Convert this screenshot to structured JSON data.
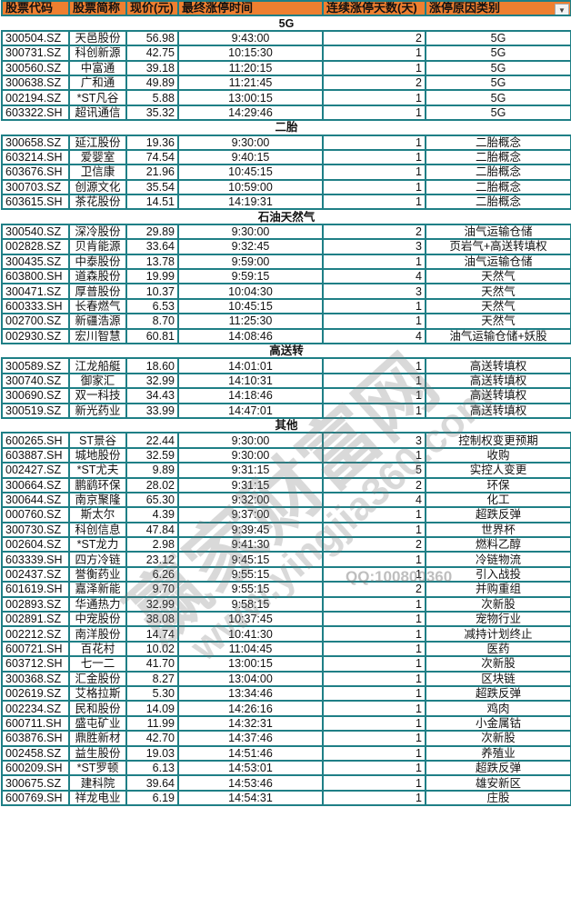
{
  "header": {
    "columns": [
      "股票代码",
      "股票简称",
      "现价(元)",
      "最终涨停时间",
      "连续涨停天数(天)",
      "涨停原因类别"
    ],
    "filter_icon": "dropdown-arrow-icon"
  },
  "colors": {
    "header_bg": "#ee7f30",
    "border": "#1f7f86"
  },
  "sections": [
    {
      "title": "5G",
      "rows": [
        [
          "300504.SZ",
          "天邑股份",
          "56.98",
          "9:43:00",
          "2",
          "5G"
        ],
        [
          "300731.SZ",
          "科创新源",
          "42.75",
          "10:15:30",
          "1",
          "5G"
        ],
        [
          "300560.SZ",
          "中富通",
          "39.18",
          "11:20:15",
          "1",
          "5G"
        ],
        [
          "300638.SZ",
          "广和通",
          "49.89",
          "11:21:45",
          "2",
          "5G"
        ],
        [
          "002194.SZ",
          "*ST凡谷",
          "5.88",
          "13:00:15",
          "1",
          "5G"
        ],
        [
          "603322.SH",
          "超讯通信",
          "35.32",
          "14:29:46",
          "1",
          "5G"
        ]
      ]
    },
    {
      "title": "二胎",
      "rows": [
        [
          "300658.SZ",
          "延江股份",
          "19.36",
          "9:30:00",
          "1",
          "二胎概念"
        ],
        [
          "603214.SH",
          "爱婴室",
          "74.54",
          "9:40:15",
          "1",
          "二胎概念"
        ],
        [
          "603676.SH",
          "卫信康",
          "21.96",
          "10:45:15",
          "1",
          "二胎概念"
        ],
        [
          "300703.SZ",
          "创源文化",
          "35.54",
          "10:59:00",
          "1",
          "二胎概念"
        ],
        [
          "603615.SH",
          "茶花股份",
          "14.51",
          "14:19:31",
          "1",
          "二胎概念"
        ]
      ]
    },
    {
      "title": "石油天然气",
      "rows": [
        [
          "300540.SZ",
          "深冷股份",
          "29.89",
          "9:30:00",
          "2",
          "油气运输仓储"
        ],
        [
          "002828.SZ",
          "贝肯能源",
          "33.64",
          "9:32:45",
          "3",
          "页岩气+高送转填权"
        ],
        [
          "300435.SZ",
          "中泰股份",
          "13.78",
          "9:59:00",
          "1",
          "油气运输仓储"
        ],
        [
          "603800.SH",
          "道森股份",
          "19.99",
          "9:59:15",
          "4",
          "天然气"
        ],
        [
          "300471.SZ",
          "厚普股份",
          "10.37",
          "10:04:30",
          "3",
          "天然气"
        ],
        [
          "600333.SH",
          "长春燃气",
          "6.53",
          "10:45:15",
          "1",
          "天然气"
        ],
        [
          "002700.SZ",
          "新疆浩源",
          "8.70",
          "11:25:30",
          "1",
          "天然气"
        ],
        [
          "002930.SZ",
          "宏川智慧",
          "60.81",
          "14:08:46",
          "4",
          "油气运输仓储+妖股"
        ]
      ]
    },
    {
      "title": "高送转",
      "rows": [
        [
          "300589.SZ",
          "江龙船艇",
          "18.60",
          "14:01:01",
          "1",
          "高送转填权"
        ],
        [
          "300740.SZ",
          "御家汇",
          "32.99",
          "14:10:31",
          "1",
          "高送转填权"
        ],
        [
          "300690.SZ",
          "双一科技",
          "34.43",
          "14:18:46",
          "1",
          "高送转填权"
        ],
        [
          "300519.SZ",
          "新光药业",
          "33.99",
          "14:47:01",
          "1",
          "高送转填权"
        ]
      ]
    },
    {
      "title": "其他",
      "rows": [
        [
          "600265.SH",
          "ST景谷",
          "22.44",
          "9:30:00",
          "3",
          "控制权变更预期"
        ],
        [
          "603887.SH",
          "城地股份",
          "32.59",
          "9:30:00",
          "1",
          "收购"
        ],
        [
          "002427.SZ",
          "*ST尤夫",
          "9.89",
          "9:31:15",
          "5",
          "实控人变更"
        ],
        [
          "300664.SZ",
          "鹏鹞环保",
          "28.02",
          "9:31:15",
          "2",
          "环保"
        ],
        [
          "300644.SZ",
          "南京聚隆",
          "65.30",
          "9:32:00",
          "4",
          "化工"
        ],
        [
          "000760.SZ",
          "斯太尔",
          "4.39",
          "9:37:00",
          "1",
          "超跌反弹"
        ],
        [
          "300730.SZ",
          "科创信息",
          "47.84",
          "9:39:45",
          "1",
          "世界杯"
        ],
        [
          "002604.SZ",
          "*ST龙力",
          "2.98",
          "9:41:30",
          "2",
          "燃料乙醇"
        ],
        [
          "603339.SH",
          "四方冷链",
          "23.12",
          "9:45:15",
          "1",
          "冷链物流"
        ],
        [
          "002437.SZ",
          "誉衡药业",
          "6.26",
          "9:55:15",
          "1",
          "引入战投"
        ],
        [
          "601619.SH",
          "嘉泽新能",
          "9.70",
          "9:55:15",
          "2",
          "并购重组"
        ],
        [
          "002893.SZ",
          "华通热力",
          "32.99",
          "9:58:15",
          "1",
          "次新股"
        ],
        [
          "002891.SZ",
          "中宠股份",
          "38.08",
          "10:37:45",
          "1",
          "宠物行业"
        ],
        [
          "002212.SZ",
          "南洋股份",
          "14.74",
          "10:41:30",
          "1",
          "减持计划终止"
        ],
        [
          "600721.SH",
          "百花村",
          "10.02",
          "11:04:45",
          "1",
          "医药"
        ],
        [
          "603712.SH",
          "七一二",
          "41.70",
          "13:00:15",
          "1",
          "次新股"
        ],
        [
          "300368.SZ",
          "汇金股份",
          "8.27",
          "13:04:00",
          "1",
          "区块链"
        ],
        [
          "002619.SZ",
          "艾格拉斯",
          "5.30",
          "13:34:46",
          "1",
          "超跌反弹"
        ],
        [
          "002234.SZ",
          "民和股份",
          "14.09",
          "14:26:16",
          "1",
          "鸡肉"
        ],
        [
          "600711.SH",
          "盛屯矿业",
          "11.99",
          "14:32:31",
          "1",
          "小金属钴"
        ],
        [
          "603876.SH",
          "鼎胜新材",
          "42.70",
          "14:37:46",
          "1",
          "次新股"
        ],
        [
          "002458.SZ",
          "益生股份",
          "19.03",
          "14:51:46",
          "1",
          "养殖业"
        ],
        [
          "600209.SH",
          "*ST罗顿",
          "6.13",
          "14:53:01",
          "1",
          "超跌反弹"
        ],
        [
          "300675.SZ",
          "建科院",
          "39.64",
          "14:53:46",
          "1",
          "雄安新区"
        ],
        [
          "600769.SH",
          "祥龙电业",
          "6.19",
          "14:54:31",
          "1",
          "庄股"
        ]
      ]
    }
  ],
  "watermark": {
    "logo": "赢家财富网",
    "url": "www.yingjia360.com",
    "qq": "QQ:100800360"
  }
}
